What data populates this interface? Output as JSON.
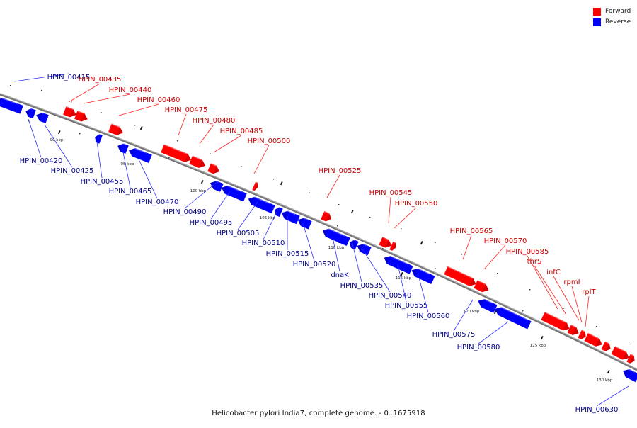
{
  "legend": {
    "forward": {
      "label": "Forward",
      "color": "#ff0000"
    },
    "reverse": {
      "label": "Reverse",
      "color": "#0000ff"
    }
  },
  "caption": "Helicobacter pylori India7, complete genome. - 0..1675918",
  "colors": {
    "forward": "#ff0000",
    "reverse": "#0000ff",
    "backbone": "#777777",
    "label_forward": "#cc0000",
    "label_reverse": "#00008b"
  },
  "ticks": [
    "90 kbp",
    "95 kbp",
    "100 kbp",
    "105 kbp",
    "110 kbp",
    "115 kbp",
    "120 kbp",
    "125 kbp",
    "130 kbp"
  ],
  "features": [
    {
      "name": "HPIN_00415",
      "strand": "reverse"
    },
    {
      "name": "HPIN_00420",
      "strand": "reverse"
    },
    {
      "name": "HPIN_00425",
      "strand": "reverse"
    },
    {
      "name": "HPIN_00435",
      "strand": "forward"
    },
    {
      "name": "HPIN_00440",
      "strand": "forward"
    },
    {
      "name": "HPIN_00455",
      "strand": "reverse"
    },
    {
      "name": "HPIN_00460",
      "strand": "forward"
    },
    {
      "name": "HPIN_00465",
      "strand": "reverse"
    },
    {
      "name": "HPIN_00470",
      "strand": "reverse"
    },
    {
      "name": "HPIN_00475",
      "strand": "forward"
    },
    {
      "name": "HPIN_00480",
      "strand": "forward"
    },
    {
      "name": "HPIN_00485",
      "strand": "forward"
    },
    {
      "name": "HPIN_00490",
      "strand": "reverse"
    },
    {
      "name": "HPIN_00495",
      "strand": "reverse"
    },
    {
      "name": "HPIN_00500",
      "strand": "forward"
    },
    {
      "name": "HPIN_00505",
      "strand": "reverse"
    },
    {
      "name": "HPIN_00510",
      "strand": "reverse"
    },
    {
      "name": "HPIN_00515",
      "strand": "reverse"
    },
    {
      "name": "HPIN_00520",
      "strand": "reverse"
    },
    {
      "name": "HPIN_00525",
      "strand": "forward"
    },
    {
      "name": "dnaK",
      "strand": "reverse"
    },
    {
      "name": "HPIN_00535",
      "strand": "reverse"
    },
    {
      "name": "HPIN_00540",
      "strand": "reverse"
    },
    {
      "name": "HPIN_00545",
      "strand": "forward"
    },
    {
      "name": "HPIN_00550",
      "strand": "forward"
    },
    {
      "name": "HPIN_00555",
      "strand": "reverse"
    },
    {
      "name": "HPIN_00560",
      "strand": "reverse"
    },
    {
      "name": "HPIN_00565",
      "strand": "forward"
    },
    {
      "name": "HPIN_00570",
      "strand": "forward"
    },
    {
      "name": "HPIN_00575",
      "strand": "reverse"
    },
    {
      "name": "HPIN_00580",
      "strand": "reverse"
    },
    {
      "name": "HPIN_00585",
      "strand": "forward"
    },
    {
      "name": "thrS",
      "strand": "forward"
    },
    {
      "name": "infC",
      "strand": "forward"
    },
    {
      "name": "rpmI",
      "strand": "forward"
    },
    {
      "name": "rplT",
      "strand": "forward"
    },
    {
      "name": "HPIN_00630",
      "strand": "reverse"
    }
  ]
}
